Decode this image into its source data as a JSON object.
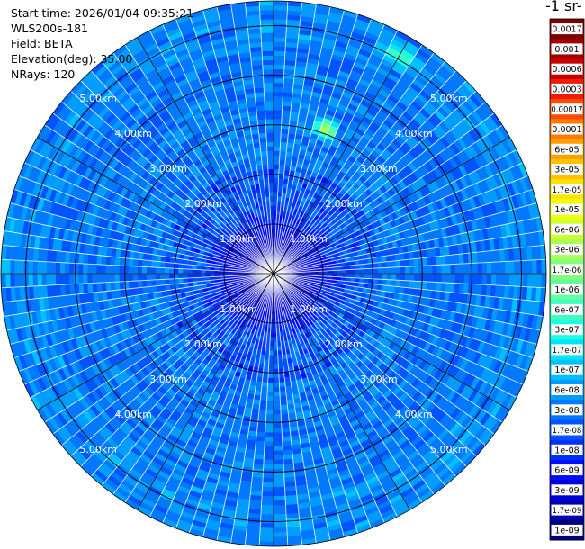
{
  "info": {
    "start_time": "Start time: 2026/01/04 09:35:21",
    "instrument": "WLS200s-181",
    "field": "Field: BETA",
    "elevation": "Elevation(deg): 35.00",
    "nrays": "NRays: 120"
  },
  "colorbar": {
    "title": "-1 sr-",
    "labels": [
      "0.0017",
      "0.001",
      "0.0006",
      "0.0003",
      "0.00017",
      "0.0001",
      "6e-05",
      "3e-05",
      "1.7e-05",
      "1e-05",
      "6e-06",
      "3e-06",
      "1.7e-06",
      "1e-06",
      "6e-07",
      "3e-07",
      "1.7e-07",
      "1e-07",
      "6e-08",
      "3e-08",
      "1.7e-08",
      "1e-08",
      "6e-09",
      "3e-09",
      "1.7e-09",
      "1e-09"
    ],
    "colors": [
      "#7f0000",
      "#a00000",
      "#c80000",
      "#ee1c00",
      "#ff4a00",
      "#ff7a00",
      "#ff9f00",
      "#ffc100",
      "#ffe400",
      "#efff10",
      "#cfff2f",
      "#a9ff56",
      "#85ff7a",
      "#62ff9d",
      "#3effc1",
      "#1cffe3",
      "#00e4f8",
      "#00c0ff",
      "#009cff",
      "#0078ff",
      "#0054ff",
      "#0030ff",
      "#000cff",
      "#0000df",
      "#0000b3",
      "#000080"
    ]
  },
  "chart_data": {
    "type": "heatmap",
    "projection": "polar",
    "field": "BETA",
    "n_rays": 120,
    "elevation_deg": 35.0,
    "range_rings_km": [
      1,
      2,
      3,
      4,
      5
    ],
    "ring_labels": [
      "1.00km",
      "2.00km",
      "3.00km",
      "4.00km",
      "5.00km"
    ],
    "max_range_km": 5.5,
    "spokes_deg": [
      0,
      30,
      60,
      90,
      120,
      150,
      180,
      210,
      240,
      270,
      300,
      330
    ],
    "color_scale": "log",
    "value_range": [
      1e-09,
      0.0017
    ],
    "dominant_value_approx": 3e-08,
    "hotspots": [
      {
        "azimuth_deg": 20,
        "range_km": 3.1,
        "value_approx": 1e-05
      },
      {
        "azimuth_deg": 30,
        "range_km": 5.1,
        "value_approx": 1.7e-06
      }
    ]
  }
}
